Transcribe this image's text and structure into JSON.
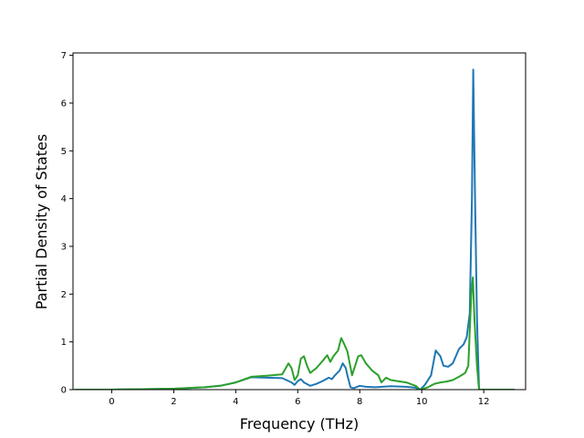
{
  "chart_data": {
    "type": "line",
    "title": "",
    "xlabel": "Frequency (THz)",
    "ylabel": "Partial Density of States",
    "xlim": [
      -1.25,
      13.35
    ],
    "ylim": [
      0,
      7.05
    ],
    "xticks": [
      0,
      2,
      4,
      6,
      8,
      10,
      12
    ],
    "yticks": [
      0,
      1,
      2,
      3,
      4,
      5,
      6,
      7
    ],
    "grid": false,
    "legend": "none",
    "series": [
      {
        "color": "#1f77b4",
        "points": [
          [
            -1.2,
            0
          ],
          [
            0,
            0
          ],
          [
            1,
            0.01
          ],
          [
            2,
            0.02
          ],
          [
            3,
            0.05
          ],
          [
            3.5,
            0.08
          ],
          [
            4,
            0.15
          ],
          [
            4.5,
            0.26
          ],
          [
            5,
            0.25
          ],
          [
            5.5,
            0.24
          ],
          [
            5.8,
            0.15
          ],
          [
            5.9,
            0.1
          ],
          [
            6.0,
            0.18
          ],
          [
            6.1,
            0.22
          ],
          [
            6.2,
            0.15
          ],
          [
            6.4,
            0.08
          ],
          [
            6.6,
            0.12
          ],
          [
            6.8,
            0.18
          ],
          [
            7.0,
            0.25
          ],
          [
            7.1,
            0.22
          ],
          [
            7.2,
            0.3
          ],
          [
            7.35,
            0.4
          ],
          [
            7.45,
            0.55
          ],
          [
            7.55,
            0.45
          ],
          [
            7.6,
            0.3
          ],
          [
            7.7,
            0.05
          ],
          [
            7.8,
            0.03
          ],
          [
            8.0,
            0.08
          ],
          [
            8.2,
            0.06
          ],
          [
            8.5,
            0.05
          ],
          [
            9.0,
            0.07
          ],
          [
            9.5,
            0.06
          ],
          [
            9.8,
            0.04
          ],
          [
            9.95,
            0
          ],
          [
            10.1,
            0.1
          ],
          [
            10.3,
            0.3
          ],
          [
            10.45,
            0.82
          ],
          [
            10.6,
            0.7
          ],
          [
            10.7,
            0.5
          ],
          [
            10.85,
            0.48
          ],
          [
            11.0,
            0.55
          ],
          [
            11.2,
            0.85
          ],
          [
            11.35,
            0.95
          ],
          [
            11.45,
            1.1
          ],
          [
            11.55,
            1.6
          ],
          [
            11.62,
            4.0
          ],
          [
            11.66,
            6.7
          ],
          [
            11.72,
            4.0
          ],
          [
            11.78,
            1.5
          ],
          [
            11.85,
            0
          ],
          [
            13,
            0
          ]
        ]
      },
      {
        "color": "#2ca02c",
        "points": [
          [
            -1.2,
            0
          ],
          [
            0,
            0
          ],
          [
            1,
            0.01
          ],
          [
            2,
            0.02
          ],
          [
            3,
            0.05
          ],
          [
            3.5,
            0.08
          ],
          [
            4,
            0.15
          ],
          [
            4.5,
            0.27
          ],
          [
            5,
            0.29
          ],
          [
            5.5,
            0.32
          ],
          [
            5.7,
            0.55
          ],
          [
            5.8,
            0.45
          ],
          [
            5.9,
            0.2
          ],
          [
            6.0,
            0.3
          ],
          [
            6.1,
            0.65
          ],
          [
            6.2,
            0.7
          ],
          [
            6.3,
            0.5
          ],
          [
            6.4,
            0.35
          ],
          [
            6.6,
            0.45
          ],
          [
            6.8,
            0.6
          ],
          [
            6.95,
            0.72
          ],
          [
            7.05,
            0.58
          ],
          [
            7.15,
            0.7
          ],
          [
            7.3,
            0.82
          ],
          [
            7.4,
            1.08
          ],
          [
            7.5,
            0.95
          ],
          [
            7.6,
            0.8
          ],
          [
            7.75,
            0.3
          ],
          [
            7.85,
            0.5
          ],
          [
            7.95,
            0.7
          ],
          [
            8.05,
            0.72
          ],
          [
            8.2,
            0.55
          ],
          [
            8.4,
            0.4
          ],
          [
            8.6,
            0.3
          ],
          [
            8.7,
            0.15
          ],
          [
            8.85,
            0.25
          ],
          [
            9.0,
            0.2
          ],
          [
            9.5,
            0.15
          ],
          [
            9.8,
            0.08
          ],
          [
            9.95,
            0
          ],
          [
            10.2,
            0.05
          ],
          [
            10.4,
            0.12
          ],
          [
            10.6,
            0.15
          ],
          [
            10.8,
            0.17
          ],
          [
            11.0,
            0.2
          ],
          [
            11.2,
            0.27
          ],
          [
            11.4,
            0.35
          ],
          [
            11.5,
            0.5
          ],
          [
            11.6,
            2.0
          ],
          [
            11.65,
            2.35
          ],
          [
            11.7,
            1.5
          ],
          [
            11.78,
            0.5
          ],
          [
            11.85,
            0
          ],
          [
            13,
            0
          ]
        ]
      }
    ]
  }
}
